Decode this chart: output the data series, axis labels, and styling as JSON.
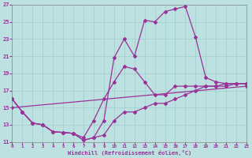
{
  "xlabel": "Windchill (Refroidissement éolien,°C)",
  "xlim": [
    0,
    23
  ],
  "ylim": [
    11,
    27
  ],
  "xticks": [
    0,
    1,
    2,
    3,
    4,
    5,
    6,
    7,
    8,
    9,
    10,
    11,
    12,
    13,
    14,
    15,
    16,
    17,
    18,
    19,
    20,
    21,
    22,
    23
  ],
  "yticks": [
    11,
    13,
    15,
    17,
    19,
    21,
    23,
    25,
    27
  ],
  "bg_color": "#bde0e0",
  "grid_color": "#9fcece",
  "line_color": "#993399",
  "line_width": 0.9,
  "marker": "D",
  "marker_size": 2.0,
  "lines": [
    {
      "x": [
        0,
        1,
        2,
        3,
        4,
        5,
        6,
        7,
        8,
        9,
        10,
        11,
        12,
        13,
        14,
        15,
        16,
        17,
        18,
        19,
        20,
        21,
        22,
        23
      ],
      "y": [
        16.0,
        14.5,
        13.2,
        13.0,
        12.2,
        12.1,
        12.0,
        11.2,
        11.5,
        13.5,
        20.8,
        23.0,
        21.0,
        25.2,
        25.0,
        26.2,
        26.5,
        26.8,
        23.2,
        18.5,
        18.0,
        17.8,
        17.8,
        17.8
      ]
    },
    {
      "x": [
        0,
        1,
        2,
        3,
        4,
        5,
        6,
        7,
        8,
        9,
        10,
        11,
        12,
        13,
        14,
        15,
        16,
        17,
        18,
        19,
        20,
        21,
        22,
        23
      ],
      "y": [
        16.0,
        14.5,
        13.2,
        13.0,
        12.2,
        12.1,
        12.0,
        11.5,
        13.5,
        16.0,
        18.0,
        19.8,
        19.5,
        18.0,
        16.5,
        16.5,
        17.5,
        17.5,
        17.5,
        17.5,
        17.5,
        17.8,
        17.8,
        17.8
      ]
    },
    {
      "x": [
        0,
        23
      ],
      "y": [
        15.0,
        17.5
      ]
    },
    {
      "x": [
        0,
        1,
        2,
        3,
        4,
        5,
        6,
        7,
        8,
        9,
        10,
        11,
        12,
        13,
        14,
        15,
        16,
        17,
        18,
        19,
        20,
        21,
        22,
        23
      ],
      "y": [
        16.0,
        14.5,
        13.2,
        13.0,
        12.2,
        12.1,
        12.0,
        11.2,
        11.5,
        11.8,
        13.5,
        14.5,
        14.5,
        15.0,
        15.5,
        15.5,
        16.0,
        16.5,
        17.0,
        17.5,
        17.5,
        17.5,
        17.8,
        17.8
      ]
    }
  ]
}
